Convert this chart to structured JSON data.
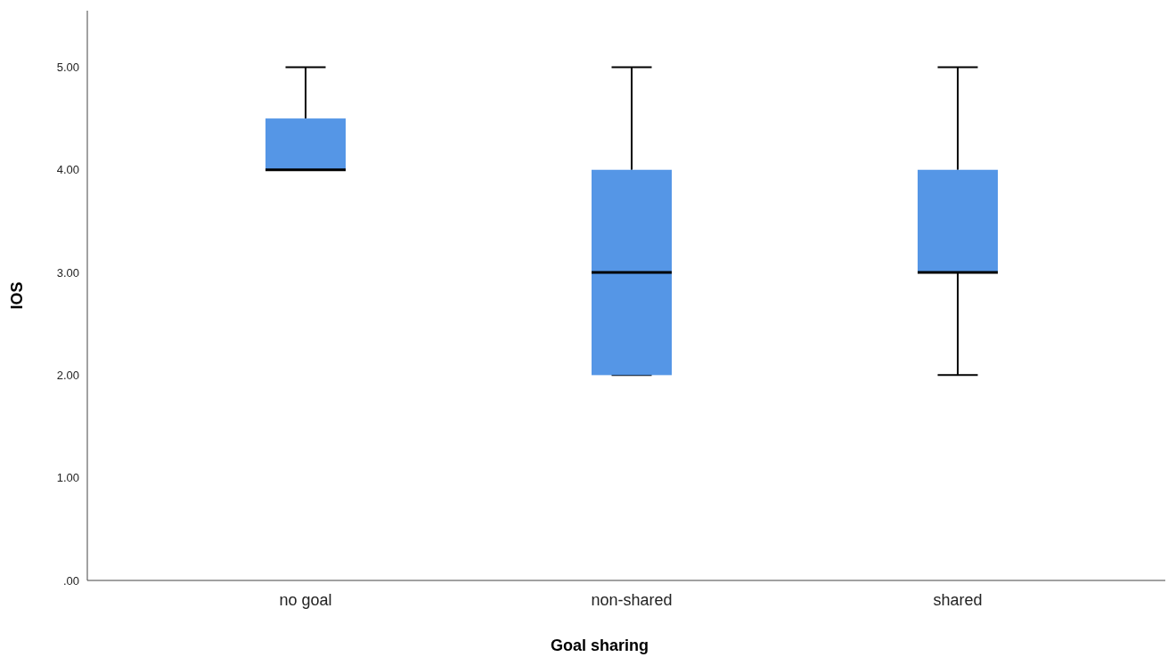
{
  "chart_data": {
    "type": "box",
    "xlabel": "Goal sharing",
    "ylabel": "IOS",
    "categories": [
      "no goal",
      "non-shared",
      "shared"
    ],
    "boxes": [
      {
        "low": 4,
        "q1": 4,
        "median": 4,
        "q3": 4.5,
        "high": 5
      },
      {
        "low": 2,
        "q1": 2,
        "median": 3,
        "q3": 4,
        "high": 5
      },
      {
        "low": 2,
        "q1": 3,
        "median": 3,
        "q3": 4,
        "high": 5
      }
    ],
    "color": "#5596e6",
    "ylim": [
      0,
      5.55
    ],
    "yticks": [
      {
        "value": 0,
        "label": ".00"
      },
      {
        "value": 1,
        "label": "1.00"
      },
      {
        "value": 2,
        "label": "2.00"
      },
      {
        "value": 3,
        "label": "3.00"
      },
      {
        "value": 4,
        "label": "4.00"
      },
      {
        "value": 5,
        "label": "5.00"
      }
    ],
    "grid": false
  }
}
